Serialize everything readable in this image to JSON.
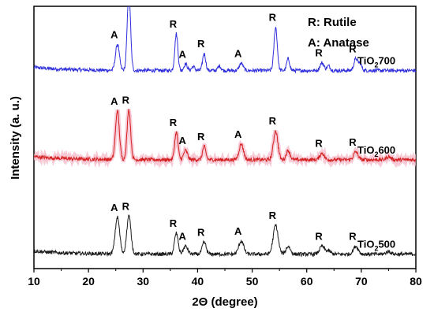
{
  "chart_data": {
    "type": "line",
    "title": "",
    "xlabel": "2Θ (degree)",
    "ylabel": "Intensity (a. u.)",
    "xlim": [
      10,
      80
    ],
    "xticks": [
      "10",
      "20",
      "30",
      "40",
      "50",
      "60",
      "70",
      "80"
    ],
    "yticks_visible": false,
    "grid": false,
    "legend": {
      "position": "top-right",
      "entries": [
        "R: Rutile",
        "A: Anatase"
      ]
    },
    "series": [
      {
        "name": "TiO2700",
        "label_main": "TiO",
        "label_sub": "2",
        "label_tail": "700",
        "color": "#2f2fdc",
        "baseline": 0.755,
        "peaks": [
          {
            "x": 25.3,
            "h": 0.1,
            "w": 0.35,
            "label": "A"
          },
          {
            "x": 27.4,
            "h": 0.3,
            "w": 0.3,
            "label": "R"
          },
          {
            "x": 36.1,
            "h": 0.14,
            "w": 0.28,
            "label": "R"
          },
          {
            "x": 37.8,
            "h": 0.025,
            "w": 0.3,
            "label": "A"
          },
          {
            "x": 39.2,
            "h": 0.015,
            "w": 0.28,
            "label": ""
          },
          {
            "x": 41.2,
            "h": 0.065,
            "w": 0.28,
            "label": "R"
          },
          {
            "x": 44.0,
            "h": 0.018,
            "w": 0.28,
            "label": ""
          },
          {
            "x": 48.0,
            "h": 0.028,
            "w": 0.35,
            "label": "A"
          },
          {
            "x": 54.3,
            "h": 0.165,
            "w": 0.3,
            "label": "R"
          },
          {
            "x": 56.6,
            "h": 0.045,
            "w": 0.28,
            "label": ""
          },
          {
            "x": 62.8,
            "h": 0.03,
            "w": 0.35,
            "label": "R"
          },
          {
            "x": 64.0,
            "h": 0.018,
            "w": 0.3,
            "label": ""
          },
          {
            "x": 69.0,
            "h": 0.045,
            "w": 0.35,
            "label": "R"
          },
          {
            "x": 69.8,
            "h": 0.025,
            "w": 0.3,
            "label": ""
          }
        ]
      },
      {
        "name": "TiO2600",
        "label_main": "TiO",
        "label_sub": "2",
        "label_tail": "600",
        "color": "#d42020",
        "baseline": 0.415,
        "peaks": [
          {
            "x": 25.3,
            "h": 0.185,
            "w": 0.35,
            "label": "A"
          },
          {
            "x": 27.4,
            "h": 0.19,
            "w": 0.32,
            "label": "R"
          },
          {
            "x": 36.1,
            "h": 0.105,
            "w": 0.3,
            "label": "R"
          },
          {
            "x": 37.8,
            "h": 0.035,
            "w": 0.35,
            "label": "A"
          },
          {
            "x": 41.2,
            "h": 0.05,
            "w": 0.3,
            "label": "R"
          },
          {
            "x": 48.0,
            "h": 0.06,
            "w": 0.4,
            "label": "A"
          },
          {
            "x": 54.3,
            "h": 0.11,
            "w": 0.4,
            "label": "R"
          },
          {
            "x": 56.6,
            "h": 0.035,
            "w": 0.35,
            "label": ""
          },
          {
            "x": 62.8,
            "h": 0.025,
            "w": 0.4,
            "label": "R"
          },
          {
            "x": 69.0,
            "h": 0.03,
            "w": 0.4,
            "label": "R"
          },
          {
            "x": 75.0,
            "h": 0.012,
            "w": 0.4,
            "label": ""
          }
        ]
      },
      {
        "name": "TiO2500",
        "label_main": "TiO",
        "label_sub": "2",
        "label_tail": "500",
        "color": "#1a1a1a",
        "baseline": 0.055,
        "peaks": [
          {
            "x": 25.3,
            "h": 0.14,
            "w": 0.4,
            "label": "A"
          },
          {
            "x": 27.4,
            "h": 0.145,
            "w": 0.38,
            "label": "R"
          },
          {
            "x": 36.1,
            "h": 0.08,
            "w": 0.33,
            "label": "R"
          },
          {
            "x": 37.8,
            "h": 0.03,
            "w": 0.4,
            "label": "A"
          },
          {
            "x": 41.2,
            "h": 0.045,
            "w": 0.35,
            "label": "R"
          },
          {
            "x": 48.0,
            "h": 0.05,
            "w": 0.45,
            "label": "A"
          },
          {
            "x": 54.3,
            "h": 0.11,
            "w": 0.45,
            "label": "R"
          },
          {
            "x": 56.6,
            "h": 0.03,
            "w": 0.4,
            "label": ""
          },
          {
            "x": 62.8,
            "h": 0.03,
            "w": 0.45,
            "label": "R"
          },
          {
            "x": 64.0,
            "h": 0.012,
            "w": 0.4,
            "label": ""
          },
          {
            "x": 69.0,
            "h": 0.03,
            "w": 0.45,
            "label": "R"
          },
          {
            "x": 75.0,
            "h": 0.01,
            "w": 0.45,
            "label": ""
          }
        ]
      }
    ]
  }
}
